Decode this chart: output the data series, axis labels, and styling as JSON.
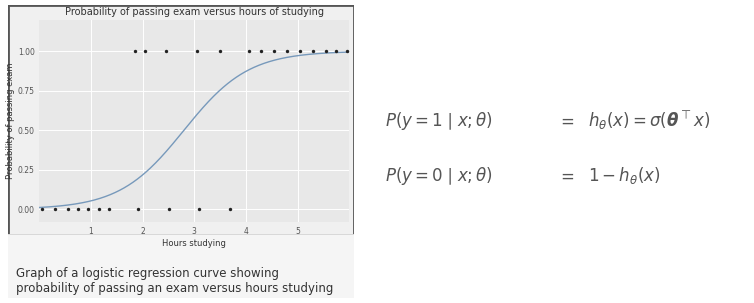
{
  "title": "Probability of passing exam versus hours of studying",
  "xlabel": "Hours studying",
  "ylabel": "Probability of passing exam",
  "xlim": [
    0,
    6
  ],
  "ylim": [
    -0.08,
    1.2
  ],
  "ytick_vals": [
    0.0,
    0.25,
    0.5,
    0.75,
    1.0
  ],
  "ytick_labels": [
    "0.00",
    "0.25",
    "0.50",
    "0.75",
    "1.00"
  ],
  "xticks": [
    1,
    2,
    3,
    4,
    5
  ],
  "sigmoid_shift": 2.8,
  "sigmoid_scale": 1.6,
  "scatter_y0_x": [
    0.05,
    0.3,
    0.55,
    0.75,
    0.95,
    1.15,
    1.35,
    1.9,
    2.5,
    3.1,
    3.7
  ],
  "scatter_y1_x": [
    1.85,
    2.05,
    2.45,
    3.05,
    3.5,
    4.05,
    4.3,
    4.55,
    4.8,
    5.05,
    5.3,
    5.55,
    5.75,
    5.95
  ],
  "dot_color": "#222222",
  "line_color": "#7799bb",
  "plot_bg_color": "#e8e8e8",
  "outer_bg": "#f0f0f0",
  "caption_bg": "#f0f0f0",
  "grid_color": "#ffffff",
  "border_color": "#555555",
  "title_fontsize": 7,
  "label_fontsize": 6,
  "tick_fontsize": 5.5,
  "caption": "Graph of a logistic regression curve showing\nprobability of passing an exam versus hours studying",
  "caption_fontsize": 8.5,
  "dot_size": 6
}
